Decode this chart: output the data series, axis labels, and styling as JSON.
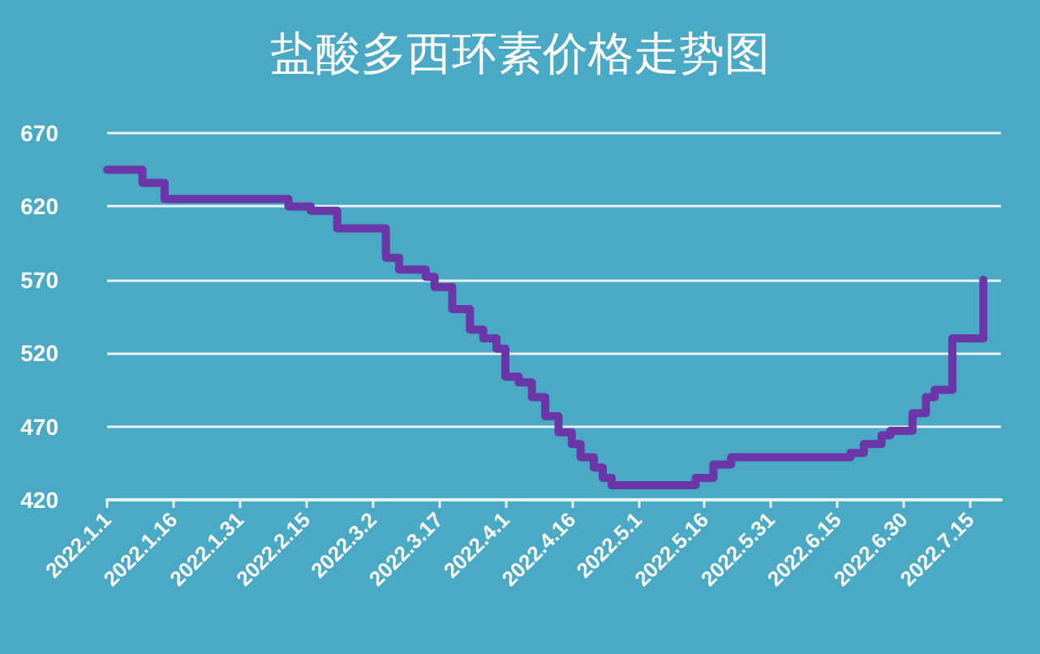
{
  "chart_data": {
    "type": "step",
    "title": "盐酸多西环素价格走势图",
    "x": [
      "2022-01-01",
      "2022-01-09",
      "2022-01-14",
      "2022-02-11",
      "2022-02-16",
      "2022-02-22",
      "2022-03-05",
      "2022-03-08",
      "2022-03-14",
      "2022-03-16",
      "2022-03-20",
      "2022-03-24",
      "2022-03-27",
      "2022-03-30",
      "2022-04-01",
      "2022-04-04",
      "2022-04-07",
      "2022-04-10",
      "2022-04-13",
      "2022-04-16",
      "2022-04-18",
      "2022-04-21",
      "2022-04-23",
      "2022-04-25",
      "2022-05-14",
      "2022-05-18",
      "2022-05-22",
      "2022-06-18",
      "2022-06-21",
      "2022-06-25",
      "2022-06-27",
      "2022-07-02",
      "2022-07-05",
      "2022-07-07",
      "2022-07-11",
      "2022-07-16",
      "2022-07-18"
    ],
    "series": [
      {
        "color": "#6b36a8",
        "values": [
          645,
          636,
          625,
          620,
          617,
          605,
          585,
          577,
          572,
          565,
          550,
          536,
          530,
          523,
          504,
          500,
          490,
          477,
          466,
          458,
          449,
          442,
          435,
          430,
          435,
          444,
          449,
          452,
          458,
          464,
          467,
          479,
          490,
          495,
          530,
          530,
          570
        ]
      }
    ],
    "xlim": [
      "2022-01-01",
      "2022-07-22"
    ],
    "xticks": [
      {
        "value": "2022-01-01",
        "label": "2022.1.1"
      },
      {
        "value": "2022-01-16",
        "label": "2022.1.16"
      },
      {
        "value": "2022-01-31",
        "label": "2022.1.31"
      },
      {
        "value": "2022-02-15",
        "label": "2022.2.15"
      },
      {
        "value": "2022-03-02",
        "label": "2022.3.2"
      },
      {
        "value": "2022-03-17",
        "label": "2022.3.17"
      },
      {
        "value": "2022-04-01",
        "label": "2022.4.1"
      },
      {
        "value": "2022-04-16",
        "label": "2022.4.16"
      },
      {
        "value": "2022-05-01",
        "label": "2022.5.1"
      },
      {
        "value": "2022-05-16",
        "label": "2022.5.16"
      },
      {
        "value": "2022-05-31",
        "label": "2022.5.31"
      },
      {
        "value": "2022-06-15",
        "label": "2022.6.15"
      },
      {
        "value": "2022-06-30",
        "label": "2022.6.30"
      },
      {
        "value": "2022-07-15",
        "label": "2022.7.15"
      }
    ],
    "ylim": [
      420,
      670
    ],
    "yticks": [
      420,
      470,
      520,
      570,
      620,
      670
    ],
    "grid": "y",
    "marker": "none",
    "line_style": "solid"
  }
}
